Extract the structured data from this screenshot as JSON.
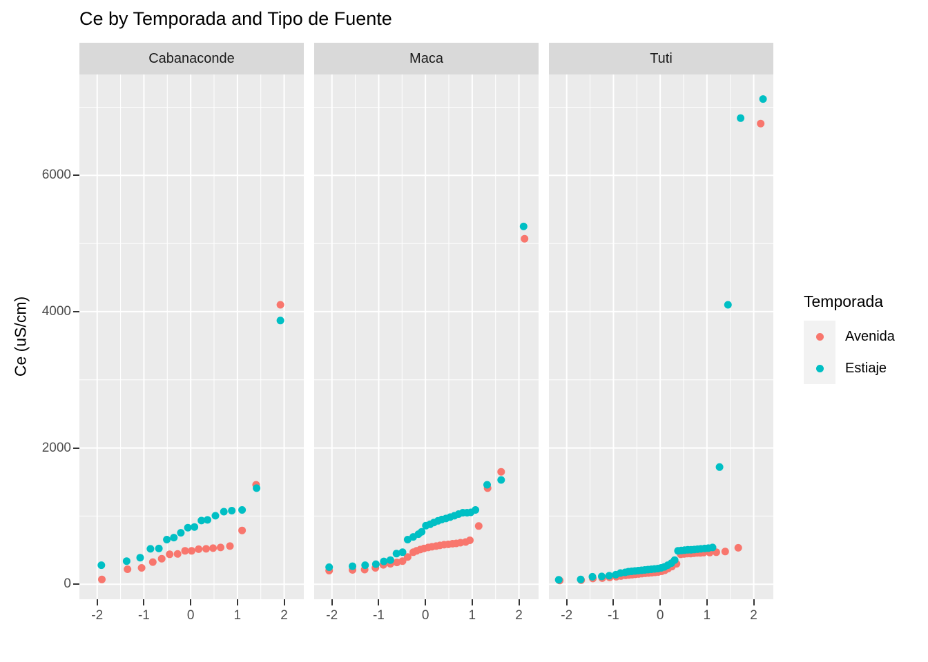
{
  "title": "Ce by Temporada and Tipo de Fuente",
  "y_axis": {
    "label": "Ce (uS/cm)"
  },
  "legend": {
    "title": "Temporada",
    "items": [
      {
        "label": "Avenida",
        "color": "#F8766D"
      },
      {
        "label": "Estiaje",
        "color": "#00BFC4"
      }
    ]
  },
  "colors": {
    "avenida": "#F8766D",
    "estiaje": "#00BFC4",
    "panel_bg": "#EBEBEB",
    "strip_bg": "#D9D9D9",
    "gridline": "#FFFFFF",
    "axis_text": "#4D4D4D"
  },
  "chart_data": {
    "type": "scatter",
    "title": "Ce by Temporada and Tipo de Fuente",
    "xlabel": "",
    "ylabel": "Ce (uS/cm)",
    "xlim": [
      -2.38,
      2.42
    ],
    "ylim": [
      -220,
      7480
    ],
    "x_major_ticks": [
      -2,
      -1,
      0,
      1,
      2
    ],
    "x_minor_ticks": [
      -1.5,
      -0.5,
      0.5,
      1.5
    ],
    "y_major_ticks": [
      0,
      2000,
      4000,
      6000
    ],
    "y_minor_ticks": [
      1000,
      3000,
      5000,
      7000
    ],
    "grid": true,
    "legend_position": "right",
    "facets": [
      {
        "label": "Cabanaconde",
        "series": [
          {
            "name": "Avenida",
            "color": "#F8766D",
            "points": [
              [
                -1.9,
                70
              ],
              [
                -1.35,
                220
              ],
              [
                -1.05,
                240
              ],
              [
                -0.81,
                325
              ],
              [
                -0.62,
                375
              ],
              [
                -0.45,
                440
              ],
              [
                -0.28,
                445
              ],
              [
                -0.12,
                490
              ],
              [
                0.02,
                490
              ],
              [
                0.17,
                515
              ],
              [
                0.33,
                520
              ],
              [
                0.48,
                530
              ],
              [
                0.64,
                540
              ],
              [
                0.84,
                560
              ],
              [
                1.1,
                790
              ],
              [
                1.4,
                1460
              ],
              [
                1.92,
                4100
              ]
            ]
          },
          {
            "name": "Estiaje",
            "color": "#00BFC4",
            "points": [
              [
                -1.91,
                280
              ],
              [
                -1.37,
                340
              ],
              [
                -1.08,
                390
              ],
              [
                -0.86,
                520
              ],
              [
                -0.68,
                525
              ],
              [
                -0.51,
                655
              ],
              [
                -0.36,
                685
              ],
              [
                -0.21,
                755
              ],
              [
                -0.06,
                830
              ],
              [
                0.08,
                840
              ],
              [
                0.23,
                935
              ],
              [
                0.36,
                945
              ],
              [
                0.53,
                1005
              ],
              [
                0.71,
                1065
              ],
              [
                0.88,
                1080
              ],
              [
                1.1,
                1090
              ],
              [
                1.41,
                1410
              ],
              [
                1.92,
                3870
              ]
            ]
          }
        ]
      },
      {
        "label": "Maca",
        "series": [
          {
            "name": "Avenida",
            "color": "#F8766D",
            "points": [
              [
                -2.06,
                200
              ],
              [
                -1.56,
                210
              ],
              [
                -1.3,
                215
              ],
              [
                -1.07,
                240
              ],
              [
                -0.9,
                285
              ],
              [
                -0.75,
                300
              ],
              [
                -0.61,
                320
              ],
              [
                -0.49,
                340
              ],
              [
                -0.38,
                400
              ],
              [
                -0.26,
                470
              ],
              [
                -0.19,
                490
              ],
              [
                -0.11,
                510
              ],
              [
                -0.03,
                525
              ],
              [
                0.06,
                540
              ],
              [
                0.14,
                550
              ],
              [
                0.23,
                560
              ],
              [
                0.31,
                570
              ],
              [
                0.4,
                580
              ],
              [
                0.49,
                585
              ],
              [
                0.58,
                595
              ],
              [
                0.66,
                600
              ],
              [
                0.75,
                610
              ],
              [
                0.86,
                620
              ],
              [
                0.95,
                645
              ],
              [
                1.14,
                855
              ],
              [
                1.33,
                1410
              ],
              [
                1.62,
                1650
              ],
              [
                2.12,
                5070
              ]
            ]
          },
          {
            "name": "Estiaje",
            "color": "#00BFC4",
            "points": [
              [
                -2.06,
                250
              ],
              [
                -1.56,
                265
              ],
              [
                -1.29,
                280
              ],
              [
                -1.06,
                295
              ],
              [
                -0.89,
                335
              ],
              [
                -0.75,
                355
              ],
              [
                -0.62,
                450
              ],
              [
                -0.49,
                470
              ],
              [
                -0.38,
                655
              ],
              [
                -0.26,
                695
              ],
              [
                -0.15,
                735
              ],
              [
                -0.08,
                770
              ],
              [
                0.01,
                860
              ],
              [
                0.1,
                880
              ],
              [
                0.18,
                905
              ],
              [
                0.27,
                930
              ],
              [
                0.35,
                950
              ],
              [
                0.44,
                965
              ],
              [
                0.53,
                985
              ],
              [
                0.62,
                1005
              ],
              [
                0.71,
                1030
              ],
              [
                0.8,
                1050
              ],
              [
                0.89,
                1050
              ],
              [
                0.97,
                1055
              ],
              [
                1.07,
                1090
              ],
              [
                1.32,
                1460
              ],
              [
                1.62,
                1530
              ],
              [
                2.1,
                5250
              ]
            ]
          }
        ]
      },
      {
        "label": "Tuti",
        "series": [
          {
            "name": "Avenida",
            "color": "#F8766D",
            "points": [
              [
                -2.15,
                55
              ],
              [
                -1.69,
                60
              ],
              [
                -1.44,
                85
              ],
              [
                -1.24,
                90
              ],
              [
                -1.08,
                100
              ],
              [
                -0.94,
                110
              ],
              [
                -0.84,
                120
              ],
              [
                -0.74,
                130
              ],
              [
                -0.67,
                135
              ],
              [
                -0.6,
                140
              ],
              [
                -0.53,
                145
              ],
              [
                -0.46,
                150
              ],
              [
                -0.39,
                155
              ],
              [
                -0.32,
                160
              ],
              [
                -0.25,
                165
              ],
              [
                -0.18,
                170
              ],
              [
                -0.11,
                175
              ],
              [
                -0.04,
                180
              ],
              [
                0.03,
                190
              ],
              [
                0.1,
                205
              ],
              [
                0.17,
                230
              ],
              [
                0.25,
                260
              ],
              [
                0.35,
                300
              ],
              [
                0.44,
                440
              ],
              [
                0.51,
                445
              ],
              [
                0.58,
                450
              ],
              [
                0.65,
                450
              ],
              [
                0.72,
                455
              ],
              [
                0.79,
                460
              ],
              [
                0.86,
                460
              ],
              [
                0.93,
                465
              ],
              [
                1.06,
                465
              ],
              [
                1.2,
                470
              ],
              [
                1.39,
                480
              ],
              [
                1.67,
                535
              ],
              [
                2.15,
                6760
              ]
            ]
          },
          {
            "name": "Estiaje",
            "color": "#00BFC4",
            "points": [
              [
                -2.17,
                65
              ],
              [
                -1.7,
                70
              ],
              [
                -1.45,
                110
              ],
              [
                -1.25,
                115
              ],
              [
                -1.09,
                125
              ],
              [
                -0.95,
                140
              ],
              [
                -0.85,
                165
              ],
              [
                -0.75,
                175
              ],
              [
                -0.68,
                185
              ],
              [
                -0.61,
                190
              ],
              [
                -0.54,
                195
              ],
              [
                -0.47,
                200
              ],
              [
                -0.4,
                205
              ],
              [
                -0.33,
                210
              ],
              [
                -0.26,
                215
              ],
              [
                -0.19,
                220
              ],
              [
                -0.12,
                225
              ],
              [
                -0.05,
                230
              ],
              [
                0.02,
                240
              ],
              [
                0.09,
                255
              ],
              [
                0.16,
                280
              ],
              [
                0.24,
                310
              ],
              [
                0.31,
                355
              ],
              [
                0.38,
                490
              ],
              [
                0.45,
                495
              ],
              [
                0.52,
                500
              ],
              [
                0.59,
                505
              ],
              [
                0.66,
                505
              ],
              [
                0.73,
                510
              ],
              [
                0.8,
                515
              ],
              [
                0.87,
                520
              ],
              [
                0.95,
                525
              ],
              [
                1.03,
                530
              ],
              [
                1.12,
                540
              ],
              [
                1.27,
                1720
              ],
              [
                1.45,
                4100
              ],
              [
                1.72,
                6840
              ],
              [
                2.2,
                7120
              ]
            ]
          }
        ]
      }
    ]
  }
}
